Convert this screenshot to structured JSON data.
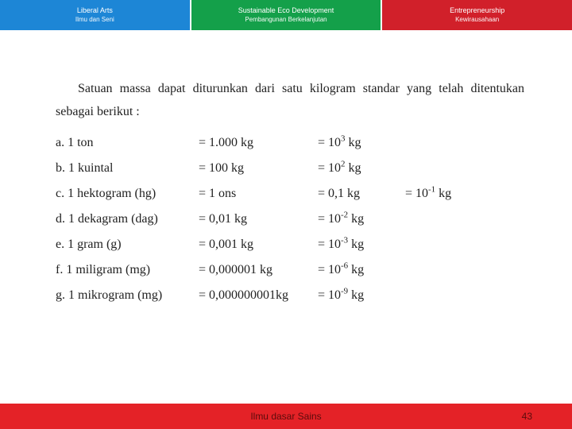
{
  "topbar": {
    "cells": [
      {
        "line1": "Liberal Arts",
        "line2": "Ilmu dan Seni",
        "bg": "#1d86d6"
      },
      {
        "line1": "Sustainable Eco Development",
        "line2": "Pembangunan Berkelanjutan",
        "bg": "#14a04a"
      },
      {
        "line1": "Entrepreneurship",
        "line2": "Kewirausahaan",
        "bg": "#d1202a"
      }
    ]
  },
  "body": {
    "intro": "Satuan massa dapat diturunkan dari satu kilogram standar yang telah ditentukan sebagai berikut :",
    "rows": [
      {
        "c1": "a. 1 ton",
        "c2": "= 1.000 kg",
        "c3_base": "= 10",
        "c3_sup": "3",
        "c3_tail": " kg",
        "c4": ""
      },
      {
        "c1": "b. 1 kuintal",
        "c2": "= 100 kg",
        "c3_base": "= 10",
        "c3_sup": "2",
        "c3_tail": " kg",
        "c4": ""
      },
      {
        "c1": "c. 1 hektogram (hg)",
        "c2": "= 1 ons",
        "c3_plain": "= 0,1 kg",
        "c4_base": "= 10",
        "c4_sup": "-1",
        "c4_tail": " kg"
      },
      {
        "c1": "d. 1 dekagram (dag)",
        "c2": "= 0,01 kg",
        "c3_base": "= 10",
        "c3_sup": "-2",
        "c3_tail": " kg",
        "c4": ""
      },
      {
        "c1": "e. 1 gram (g)",
        "c2": "= 0,001 kg",
        "c3_base": "= 10",
        "c3_sup": "-3",
        "c3_tail": " kg",
        "c4": ""
      },
      {
        "c1": "f.  1 miligram (mg)",
        "c2": "= 0,000001 kg",
        "c3_base": "= 10",
        "c3_sup": "-6",
        "c3_tail": " kg",
        "c4": ""
      },
      {
        "c1": "g. 1 mikrogram (mg)",
        "c2": "= 0,000000001kg",
        "c3_base": "= 10",
        "c3_sup": "-9",
        "c3_tail": " kg",
        "c4": ""
      }
    ]
  },
  "footer": {
    "title": "Ilmu dasar Sains",
    "page": "43",
    "bg": "#e42227"
  }
}
